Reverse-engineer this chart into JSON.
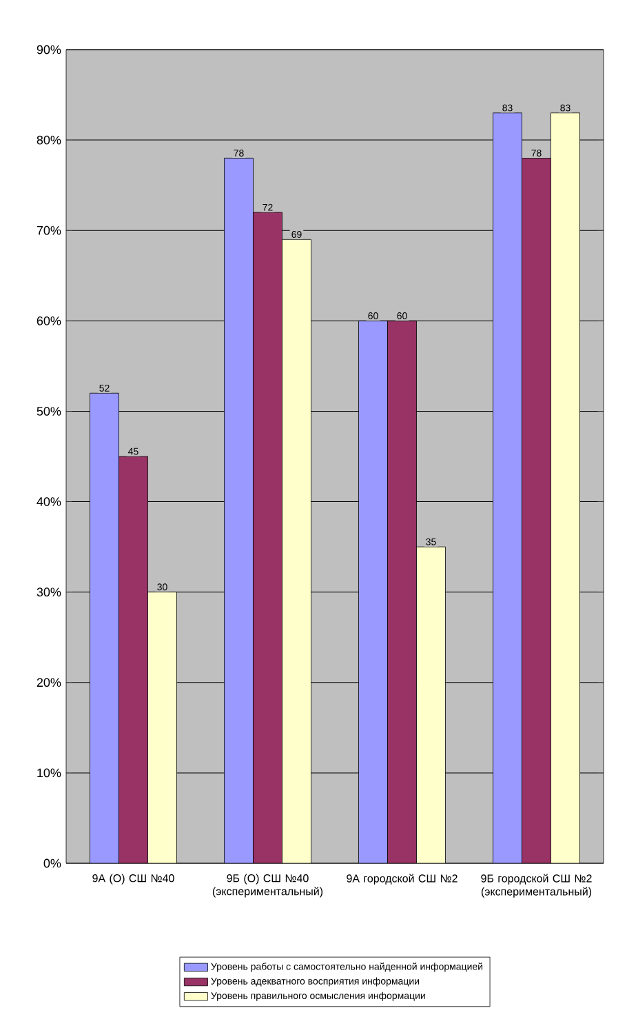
{
  "chart_data": {
    "type": "bar",
    "categories": [
      "9А (О) СШ №40",
      "9Б (О) СШ №40 (экспериментальный)",
      "9А городской СШ №2",
      "9Б городской СШ №2 (экспериментальный)"
    ],
    "series": [
      {
        "name": "Уровень работы с самостоятельно найденной информацией",
        "color": "#9999ff",
        "values": [
          52,
          78,
          60,
          83
        ]
      },
      {
        "name": "Уровень адекватного восприятия информации",
        "color": "#993366",
        "values": [
          45,
          72,
          60,
          78
        ]
      },
      {
        "name": "Уровень правильного осмысления информации",
        "color": "#ffffcc",
        "values": [
          30,
          69,
          35,
          83
        ]
      }
    ],
    "ylim": [
      0,
      90
    ],
    "yticks": [
      {
        "value": 0,
        "label": "0%"
      },
      {
        "value": 10,
        "label": "10%"
      },
      {
        "value": 20,
        "label": "20%"
      },
      {
        "value": 30,
        "label": "30%"
      },
      {
        "value": 40,
        "label": "40%"
      },
      {
        "value": 50,
        "label": "50%"
      },
      {
        "value": 60,
        "label": "60%"
      },
      {
        "value": 70,
        "label": "70%"
      },
      {
        "value": 80,
        "label": "80%"
      },
      {
        "value": 90,
        "label": "90%"
      }
    ],
    "grid": "y",
    "legend": "bottom",
    "data_labels": true
  }
}
